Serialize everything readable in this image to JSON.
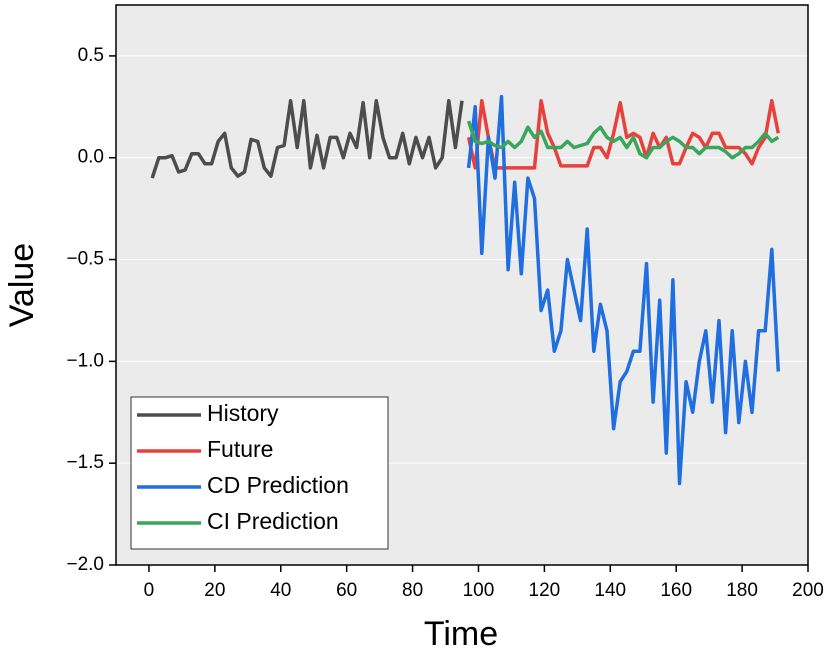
{
  "chart_data": {
    "type": "line",
    "x_label": "Time",
    "y_label": "Value",
    "xlim": [
      -10,
      200
    ],
    "ylim": [
      -2,
      0.75
    ],
    "xticks": [
      0,
      20,
      40,
      60,
      80,
      100,
      120,
      140,
      160,
      180,
      200
    ],
    "yticks": [
      {
        "value": -2,
        "label": "−2.0"
      },
      {
        "value": -1.5,
        "label": "−1.5"
      },
      {
        "value": -1,
        "label": "−1.0"
      },
      {
        "value": -0.5,
        "label": "−0.5"
      },
      {
        "value": 0,
        "label": "0.0"
      },
      0.5
    ],
    "grid": true,
    "legend": "lower left",
    "series": [
      {
        "name": "History",
        "color": "#4d4d4d",
        "x": [
          1,
          3,
          5,
          7,
          9,
          11,
          13,
          15,
          17,
          19,
          21,
          23,
          25,
          27,
          29,
          31,
          33,
          35,
          37,
          39,
          41,
          43,
          45,
          47,
          49,
          51,
          53,
          55,
          57,
          59,
          61,
          63,
          65,
          67,
          69,
          71,
          73,
          75,
          77,
          79,
          81,
          83,
          85,
          87,
          89,
          91,
          93,
          95
        ],
        "values": [
          -0.1,
          0.0,
          0.0,
          0.01,
          -0.07,
          -0.06,
          0.02,
          0.02,
          -0.03,
          -0.03,
          0.08,
          0.12,
          -0.05,
          -0.09,
          -0.07,
          0.09,
          0.08,
          -0.05,
          -0.09,
          0.05,
          0.06,
          0.28,
          0.05,
          0.28,
          -0.05,
          0.11,
          -0.05,
          0.1,
          0.1,
          0.0,
          0.12,
          0.05,
          0.27,
          0.0,
          0.28,
          0.1,
          0.0,
          0.0,
          0.12,
          -0.03,
          0.1,
          0.0,
          0.1,
          -0.05,
          0.0,
          0.28,
          0.05,
          0.28
        ]
      },
      {
        "name": "Future",
        "color": "#e8413c",
        "x": [
          97,
          99,
          101,
          103,
          105,
          107,
          109,
          111,
          113,
          115,
          117,
          119,
          121,
          123,
          125,
          127,
          129,
          131,
          133,
          135,
          137,
          139,
          141,
          143,
          145,
          147,
          149,
          151,
          153,
          155,
          157,
          159,
          161,
          163,
          165,
          167,
          169,
          171,
          173,
          175,
          177,
          179,
          181,
          183,
          185,
          187,
          189,
          191
        ],
        "values": [
          0.1,
          -0.05,
          0.28,
          0.1,
          -0.05,
          -0.05,
          -0.05,
          -0.05,
          -0.05,
          -0.05,
          -0.05,
          0.28,
          0.12,
          0.05,
          -0.04,
          -0.04,
          -0.04,
          -0.04,
          -0.04,
          0.05,
          0.05,
          0.0,
          0.12,
          0.27,
          0.1,
          0.12,
          0.1,
          0.0,
          0.12,
          0.05,
          0.1,
          -0.03,
          -0.03,
          0.05,
          0.12,
          0.1,
          0.05,
          0.12,
          0.12,
          0.05,
          0.05,
          0.05,
          0.02,
          -0.03,
          0.05,
          0.1,
          0.28,
          0.12
        ]
      },
      {
        "name": "CD Prediction",
        "color": "#1f6fe0",
        "x": [
          97,
          99,
          101,
          103,
          105,
          107,
          109,
          111,
          113,
          115,
          117,
          119,
          121,
          123,
          125,
          127,
          129,
          131,
          133,
          135,
          137,
          139,
          141,
          143,
          145,
          147,
          149,
          151,
          153,
          155,
          157,
          159,
          161,
          163,
          165,
          167,
          169,
          171,
          173,
          175,
          177,
          179,
          181,
          183,
          185,
          187,
          189,
          191
        ],
        "values": [
          -0.05,
          0.25,
          -0.47,
          0.1,
          -0.1,
          0.3,
          -0.55,
          -0.12,
          -0.57,
          -0.1,
          -0.2,
          -0.75,
          -0.65,
          -0.95,
          -0.85,
          -0.5,
          -0.65,
          -0.8,
          -0.35,
          -0.95,
          -0.72,
          -0.85,
          -1.33,
          -1.1,
          -1.05,
          -0.95,
          -0.95,
          -0.52,
          -1.2,
          -0.7,
          -1.45,
          -0.6,
          -1.6,
          -1.1,
          -1.25,
          -1.0,
          -0.85,
          -1.2,
          -0.8,
          -1.35,
          -0.85,
          -1.3,
          -1.0,
          -1.25,
          -0.85,
          -0.85,
          -0.45,
          -1.05
        ]
      },
      {
        "name": "CI Prediction",
        "color": "#3aa65c",
        "x": [
          97,
          99,
          101,
          103,
          105,
          107,
          109,
          111,
          113,
          115,
          117,
          119,
          121,
          123,
          125,
          127,
          129,
          131,
          133,
          135,
          137,
          139,
          141,
          143,
          145,
          147,
          149,
          151,
          153,
          155,
          157,
          159,
          161,
          163,
          165,
          167,
          169,
          171,
          173,
          175,
          177,
          179,
          181,
          183,
          185,
          187,
          189,
          191
        ],
        "values": [
          0.18,
          0.08,
          0.07,
          0.08,
          0.06,
          0.05,
          0.08,
          0.05,
          0.08,
          0.15,
          0.1,
          0.13,
          0.05,
          0.05,
          0.05,
          0.08,
          0.05,
          0.06,
          0.07,
          0.12,
          0.15,
          0.1,
          0.08,
          0.1,
          0.05,
          0.1,
          0.02,
          0.0,
          0.05,
          0.05,
          0.08,
          0.1,
          0.08,
          0.05,
          0.05,
          0.02,
          0.05,
          0.05,
          0.05,
          0.03,
          0.0,
          0.02,
          0.05,
          0.05,
          0.08,
          0.12,
          0.08,
          0.1
        ]
      }
    ]
  }
}
